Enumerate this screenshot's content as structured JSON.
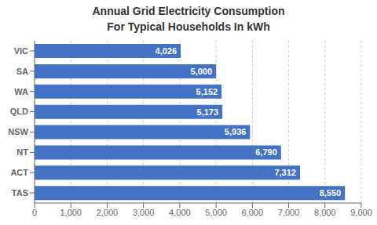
{
  "chart_data": {
    "type": "bar",
    "orientation": "horizontal",
    "title": "Annual Grid Electricity Consumption\nFor Typical Households In kWh",
    "categories": [
      "TAS",
      "ACT",
      "NT",
      "NSW",
      "QLD",
      "WA",
      "SA",
      "VIC"
    ],
    "values": [
      8550,
      7312,
      6790,
      5936,
      5173,
      5152,
      5000,
      4026
    ],
    "value_labels": [
      "8,550",
      "7,312",
      "6,790",
      "5,936",
      "5,173",
      "5,152",
      "5,000",
      "4,026"
    ],
    "data_labels": true,
    "color": "#4472c4",
    "xlim": [
      0,
      9000
    ],
    "xticks": [
      0,
      {
        "value": 1000,
        "label": "1,000"
      },
      {
        "value": 2000,
        "label": "2,000"
      },
      {
        "value": 3000,
        "label": "3,000"
      },
      {
        "value": 4000,
        "label": "4,000"
      },
      {
        "value": 5000,
        "label": "5,000"
      },
      {
        "value": 6000,
        "label": "6,000"
      },
      {
        "value": 7000,
        "label": "7,000"
      },
      {
        "value": 8000,
        "label": "8,000"
      },
      {
        "value": 9000,
        "label": "9,000"
      }
    ],
    "grid": true
  }
}
